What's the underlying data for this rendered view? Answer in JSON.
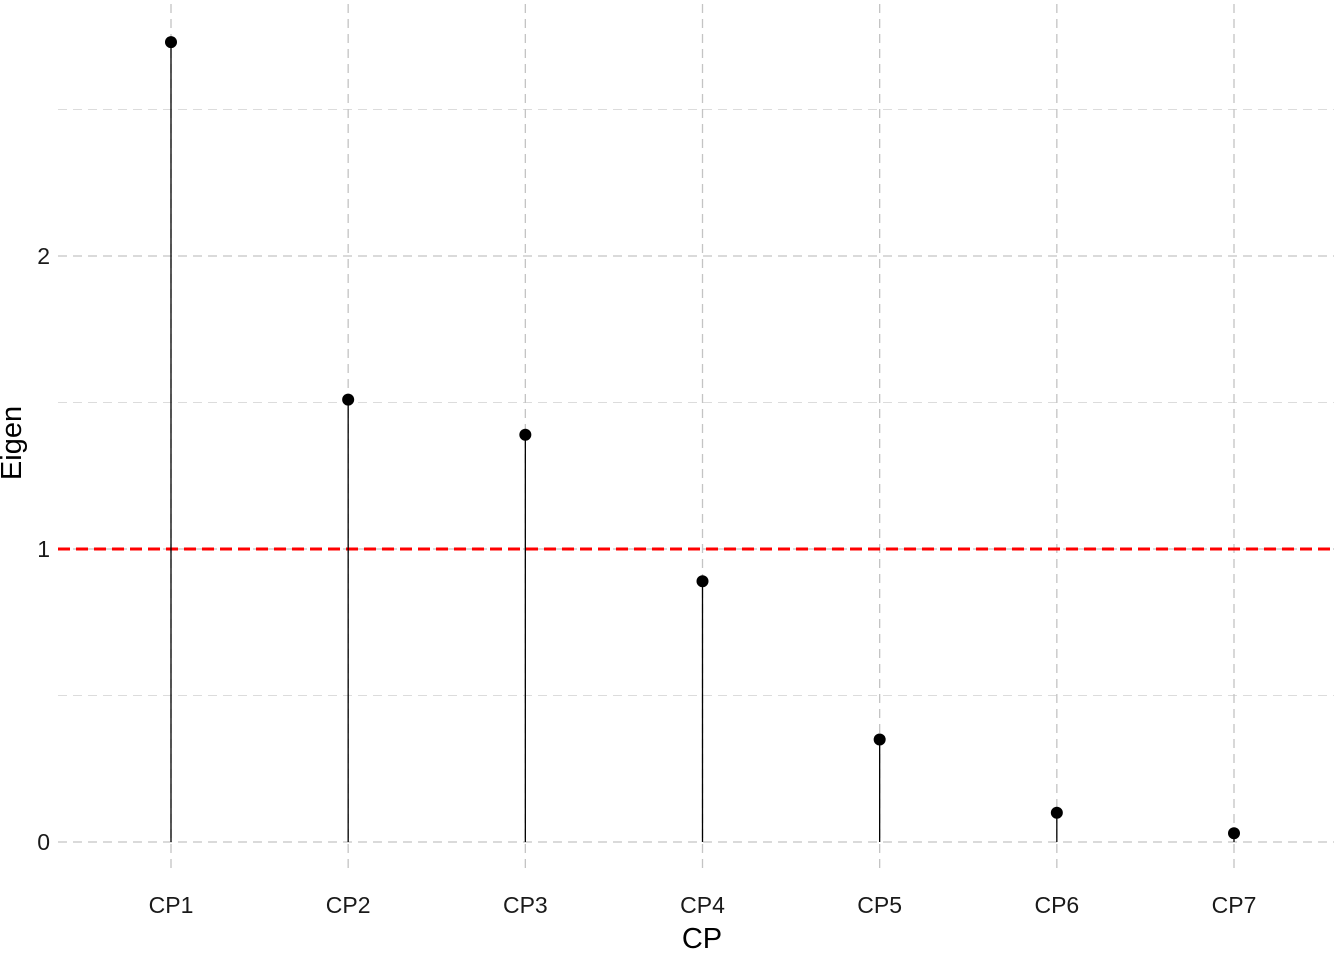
{
  "chart_data": {
    "type": "lollipop",
    "categories": [
      "CP1",
      "CP2",
      "CP3",
      "CP4",
      "CP5",
      "CP6",
      "CP7"
    ],
    "values": [
      2.73,
      1.51,
      1.39,
      0.89,
      0.35,
      0.1,
      0.03
    ],
    "xlabel": "CP",
    "ylabel": "Eigen",
    "ylim": [
      -0.1,
      2.8
    ],
    "yticks": [
      0,
      1,
      2
    ],
    "yticks_minor": [
      0.5,
      1.5,
      2.5
    ],
    "grid": true,
    "legend": "none",
    "reference_line": {
      "y": 1,
      "color": "#ff0000",
      "style": "dashed"
    },
    "colors": {
      "points": "#000000",
      "stems": "#000000",
      "reference": "#ff0000",
      "grid": "#c4c4c4"
    }
  }
}
